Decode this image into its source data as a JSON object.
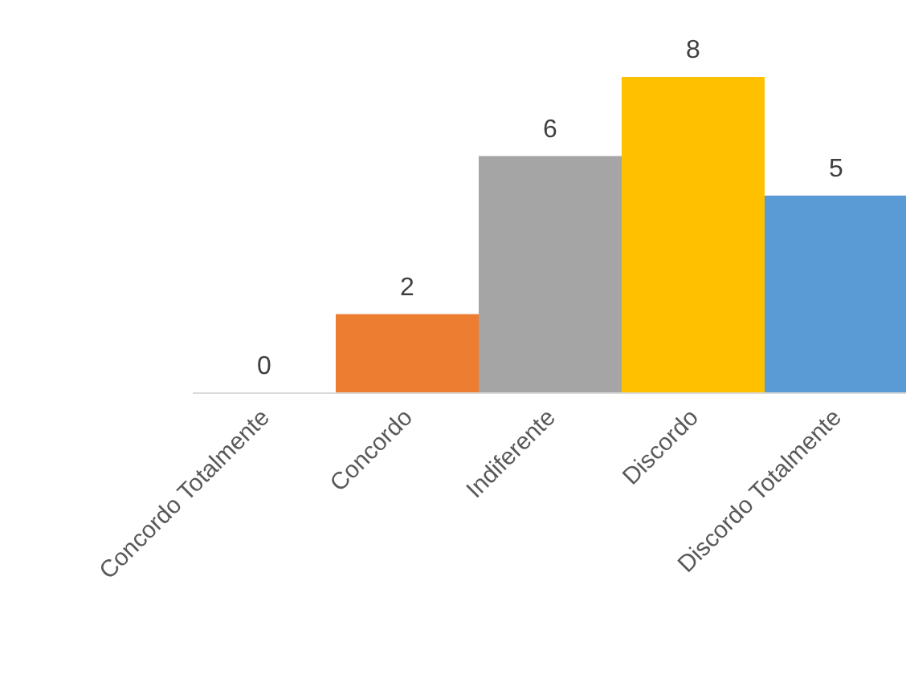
{
  "chart_data": {
    "type": "bar",
    "categories": [
      "Concordo Totalmente",
      "Concordo",
      "Indiferente",
      "Discordo",
      "Discordo Totalmente"
    ],
    "values": [
      0,
      2,
      6,
      8,
      5
    ],
    "colors": [
      "#4472c4",
      "#ed7d31",
      "#a5a5a5",
      "#ffc000",
      "#5b9bd5"
    ],
    "data_labels": true
  }
}
